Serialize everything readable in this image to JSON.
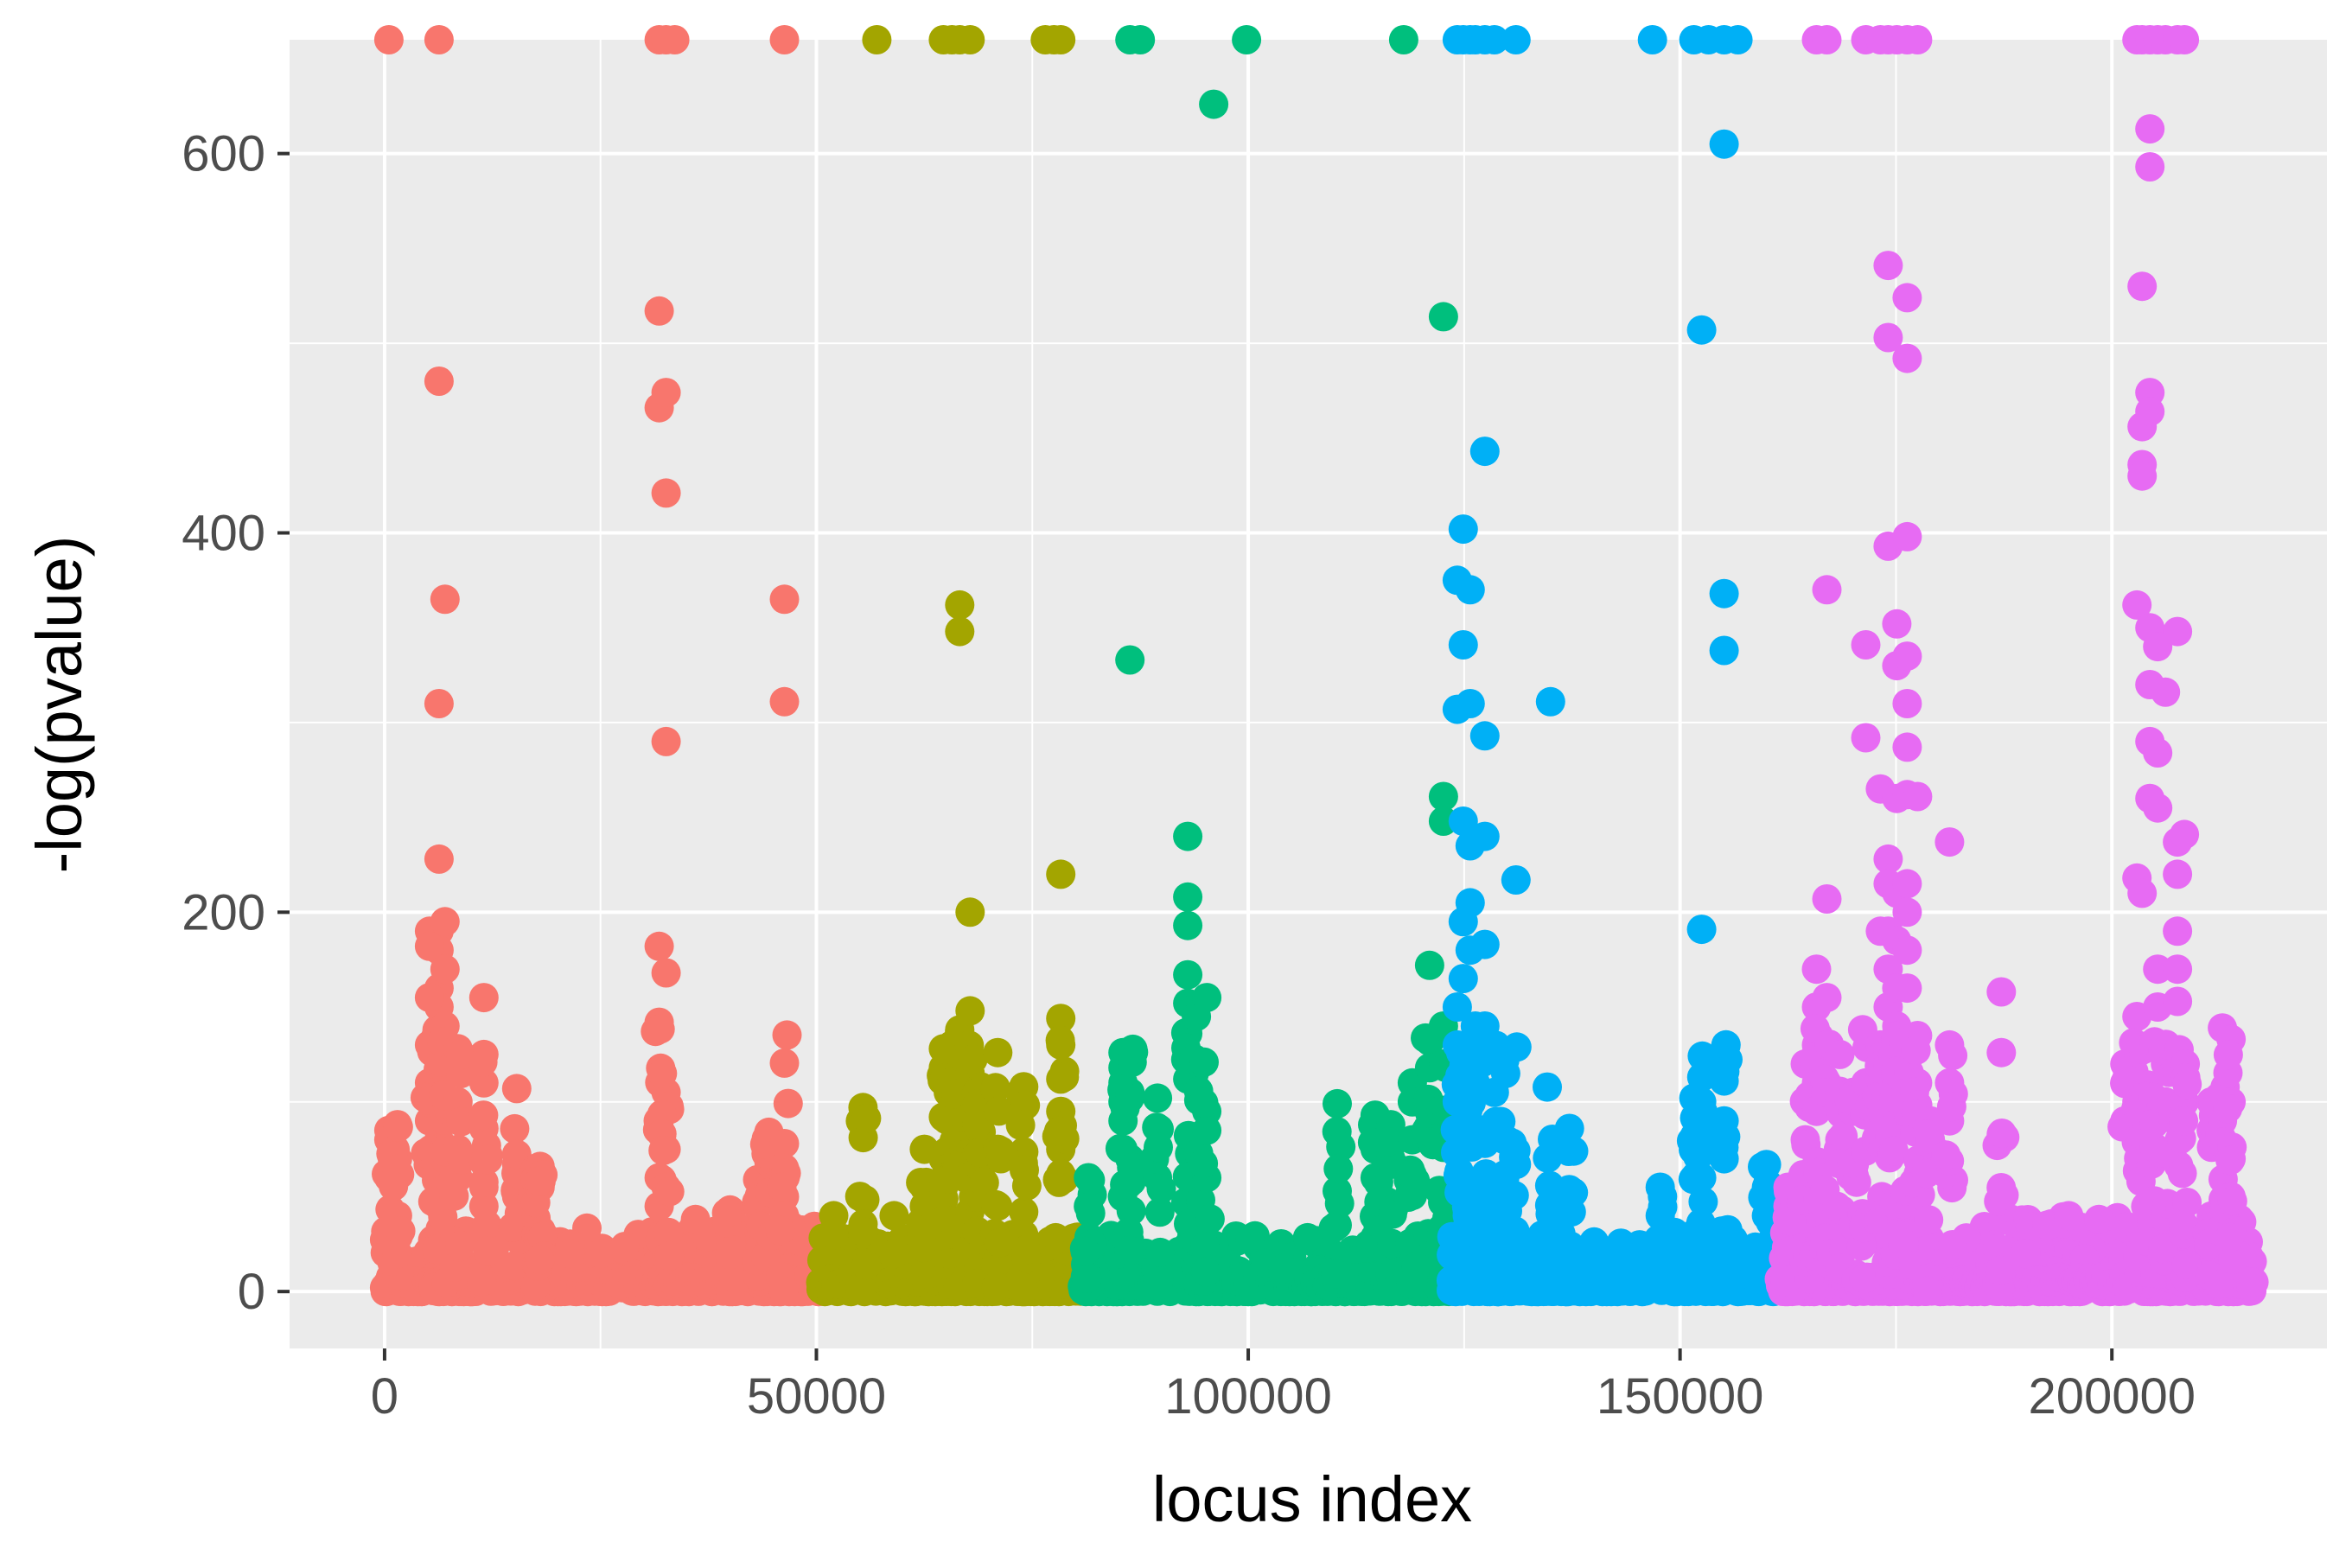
{
  "chart_data": {
    "type": "scatter",
    "title": "",
    "xlabel": "locus index",
    "ylabel": "-log(pvalue)",
    "xlim": [
      -11000,
      225000
    ],
    "ylim": [
      -30,
      660
    ],
    "x_ticks": [
      0,
      50000,
      100000,
      150000,
      200000
    ],
    "x_tick_labels": [
      "0",
      "50000",
      "100000",
      "150000",
      "200000"
    ],
    "y_ticks": [
      0,
      200,
      400,
      600
    ],
    "y_tick_labels": [
      "0",
      "200",
      "400",
      "600"
    ],
    "grid": true,
    "legend": "none",
    "background_color": "#ebebeb",
    "grid_color": "#ffffff",
    "groups": [
      {
        "color": "#F8766D",
        "x_range": [
          0,
          50500
        ],
        "baseline_max": 35,
        "peaks": [
          {
            "x": 500,
            "values": [
              660,
              85,
              80,
              60
            ]
          },
          {
            "x": 1500,
            "values": [
              88,
              70,
              40
            ]
          },
          {
            "x": 6300,
            "values": [
              660,
              480,
              310,
              228,
              190,
              180,
              160,
              150,
              135,
              120,
              110,
              95,
              80,
              70,
              60,
              45
            ]
          },
          {
            "x": 5200,
            "values": [
              190,
              182,
              155,
              130,
              110,
              90
            ]
          },
          {
            "x": 7000,
            "values": [
              365,
              195,
              170,
              140,
              115,
              90,
              70
            ]
          },
          {
            "x": 8500,
            "values": [
              128,
              100,
              75,
              60
            ]
          },
          {
            "x": 11500,
            "values": [
              155,
              125,
              110,
              86,
              68,
              55,
              45
            ]
          },
          {
            "x": 15300,
            "values": [
              107,
              67,
              50
            ]
          },
          {
            "x": 17500,
            "values": [
              65,
              55,
              30
            ]
          },
          {
            "x": 18000,
            "values": [
              66,
              55
            ]
          },
          {
            "x": 21500,
            "values": [
              25,
              20
            ]
          },
          {
            "x": 25000,
            "values": [
              20
            ]
          },
          {
            "x": 31800,
            "values": [
              660,
              517,
              466,
              182,
              142,
              90,
              60,
              45
            ]
          },
          {
            "x": 32600,
            "values": [
              660,
              474,
              421,
              290,
              168,
              105,
              75,
              55
            ]
          },
          {
            "x": 33600,
            "values": [
              660
            ]
          },
          {
            "x": 36000,
            "values": [
              38
            ]
          },
          {
            "x": 40000,
            "values": [
              43,
              30
            ]
          },
          {
            "x": 43200,
            "values": [
              59,
              45
            ]
          },
          {
            "x": 44500,
            "values": [
              84,
              55
            ]
          },
          {
            "x": 46300,
            "values": [
              660,
              365,
              311,
              78,
              65,
              50,
              40
            ]
          }
        ]
      },
      {
        "color": "#A3A500",
        "x_range": [
          50500,
          80800
        ],
        "baseline_max": 30,
        "peaks": [
          {
            "x": 52000,
            "values": [
              40,
              30
            ]
          },
          {
            "x": 55400,
            "values": [
              97,
              30
            ]
          },
          {
            "x": 57000,
            "values": [
              660
            ]
          },
          {
            "x": 59000,
            "values": [
              40,
              20
            ]
          },
          {
            "x": 62500,
            "values": [
              75,
              55,
              45
            ]
          },
          {
            "x": 64700,
            "values": [
              660,
              128,
              118,
              92,
              70,
              55,
              40
            ]
          },
          {
            "x": 65700,
            "values": [
              660,
              130
            ]
          },
          {
            "x": 66600,
            "values": [
              660,
              362,
              348,
              138,
              125,
              100,
              80
            ]
          },
          {
            "x": 67800,
            "values": [
              660,
              200,
              148,
              115,
              90,
              60
            ]
          },
          {
            "x": 69000,
            "values": [
              108,
              92,
              80,
              65,
              50
            ]
          },
          {
            "x": 71000,
            "values": [
              126,
              75,
              45
            ]
          },
          {
            "x": 74000,
            "values": [
              108,
              42,
              30
            ]
          },
          {
            "x": 76500,
            "values": [
              660
            ]
          },
          {
            "x": 77500,
            "values": [
              660
            ]
          },
          {
            "x": 78300,
            "values": [
              660,
              220,
              144,
              130,
              112,
              95,
              85,
              75,
              62
            ]
          }
        ]
      },
      {
        "color": "#00BF7D",
        "x_range": [
          80800,
          123500
        ],
        "baseline_max": 30,
        "peaks": [
          {
            "x": 81500,
            "values": [
              60,
              45
            ]
          },
          {
            "x": 85500,
            "values": [
              126,
              118,
              110,
              100,
              90,
              75
            ]
          },
          {
            "x": 86300,
            "values": [
              660,
              333,
              105,
              70
            ]
          },
          {
            "x": 87500,
            "values": [
              660
            ]
          },
          {
            "x": 89500,
            "values": [
              102,
              60
            ]
          },
          {
            "x": 93000,
            "values": [
              240,
              208,
              193,
              167,
              152,
              136,
              122,
              112
            ]
          },
          {
            "x": 94000,
            "values": [
              150,
              145
            ]
          },
          {
            "x": 95200,
            "values": [
              155,
              95,
              85,
              60
            ]
          },
          {
            "x": 96000,
            "values": [
              626
            ]
          },
          {
            "x": 99800,
            "values": [
              660
            ]
          },
          {
            "x": 102000,
            "values": [
              15
            ]
          },
          {
            "x": 104000,
            "values": [
              12
            ]
          },
          {
            "x": 110300,
            "values": [
              99,
              53,
              35
            ]
          },
          {
            "x": 114700,
            "values": [
              93,
              75,
              60
            ]
          },
          {
            "x": 116500,
            "values": [
              88,
              70
            ]
          },
          {
            "x": 118000,
            "values": [
              660
            ]
          },
          {
            "x": 119000,
            "values": [
              110,
              100,
              80
            ]
          },
          {
            "x": 121000,
            "values": [
              172,
              132,
              118
            ]
          },
          {
            "x": 122600,
            "values": [
              514,
              261,
              248,
              140,
              120
            ]
          }
        ]
      },
      {
        "color": "#00B0F6",
        "x_range": [
          123500,
          161500
        ],
        "baseline_max": 32,
        "peaks": [
          {
            "x": 124200,
            "values": [
              660,
              375,
              307,
              150,
              130,
              100
            ]
          },
          {
            "x": 124900,
            "values": [
              660,
              402,
              341,
              248,
              195,
              165
            ]
          },
          {
            "x": 125700,
            "values": [
              660,
              370,
              310,
              235,
              205,
              180
            ]
          },
          {
            "x": 126300,
            "values": [
              660,
              140,
              110
            ]
          },
          {
            "x": 127400,
            "values": [
              660,
              443,
              293,
              240,
              183,
              140
            ]
          },
          {
            "x": 128500,
            "values": [
              660,
              130,
              105
            ]
          },
          {
            "x": 129700,
            "values": [
              122,
              80,
              60
            ]
          },
          {
            "x": 131000,
            "values": [
              660,
              217
            ]
          },
          {
            "x": 135000,
            "values": [
              311
            ]
          },
          {
            "x": 137200,
            "values": [
              86,
              75,
              50
            ]
          },
          {
            "x": 143000,
            "values": [
              20
            ]
          },
          {
            "x": 146800,
            "values": [
              660
            ]
          },
          {
            "x": 147700,
            "values": [
              55,
              40
            ]
          },
          {
            "x": 150000,
            "values": [
              20
            ]
          },
          {
            "x": 151600,
            "values": [
              660,
              102
            ]
          },
          {
            "x": 152500,
            "values": [
              507,
              191,
              100,
              80,
              60
            ]
          },
          {
            "x": 153300,
            "values": [
              660
            ]
          },
          {
            "x": 155100,
            "values": [
              660,
              605,
              368,
              338,
              111,
              90,
              70
            ]
          },
          {
            "x": 156700,
            "values": [
              660
            ]
          },
          {
            "x": 160000,
            "values": [
              67,
              55,
              40
            ]
          }
        ]
      },
      {
        "color": "#E76BF3",
        "x_range": [
          161500,
          216500
        ],
        "baseline_max": 40,
        "peaks": [
          {
            "x": 162500,
            "values": [
              55,
              45
            ]
          },
          {
            "x": 164500,
            "values": [
              120,
              100,
              80
            ]
          },
          {
            "x": 165800,
            "values": [
              660,
              170,
              150,
              130,
              110,
              95
            ]
          },
          {
            "x": 167000,
            "values": [
              660,
              370,
              207,
              155,
              130,
              110
            ]
          },
          {
            "x": 168500,
            "values": [
              125,
              100,
              80
            ]
          },
          {
            "x": 170000,
            "values": [
              105,
              95
            ]
          },
          {
            "x": 171500,
            "values": [
              660,
              341,
              292,
              110
            ]
          },
          {
            "x": 173200,
            "values": [
              660,
              265,
              190,
              130,
              100
            ]
          },
          {
            "x": 174100,
            "values": [
              660,
              541,
              503,
              393,
              228,
              215,
              190,
              170,
              150,
              120
            ]
          },
          {
            "x": 175100,
            "values": [
              660,
              352,
              330,
              260,
              210,
              185,
              160,
              140,
              110
            ]
          },
          {
            "x": 176300,
            "values": [
              660,
              524,
              492,
              398,
              335,
              310,
              287,
              262,
              215,
              200,
              180,
              160
            ]
          },
          {
            "x": 177500,
            "values": [
              660,
              261,
              135,
              110
            ]
          },
          {
            "x": 179000,
            "values": [
              90,
              70
            ]
          },
          {
            "x": 181200,
            "values": [
              237,
              130,
              110,
              90
            ]
          },
          {
            "x": 187200,
            "values": [
              158,
              126,
              83,
              50
            ]
          },
          {
            "x": 190000,
            "values": [
              20
            ]
          },
          {
            "x": 192500,
            "values": [
              35
            ]
          },
          {
            "x": 195000,
            "values": [
              40
            ]
          },
          {
            "x": 198500,
            "values": [
              38
            ]
          },
          {
            "x": 201500,
            "values": [
              120,
              110,
              90
            ]
          },
          {
            "x": 202900,
            "values": [
              660,
              362,
              218,
              145,
              100,
              80
            ]
          },
          {
            "x": 203500,
            "values": [
              660,
              530,
              456,
              436,
              430,
              210
            ]
          },
          {
            "x": 204400,
            "values": [
              660,
              613,
              593,
              474,
              464,
              350,
              320,
              290,
              260
            ]
          },
          {
            "x": 205300,
            "values": [
              660,
              340,
              284,
              255,
              170,
              150
            ]
          },
          {
            "x": 206200,
            "values": [
              660,
              316,
              120,
              100
            ]
          },
          {
            "x": 207600,
            "values": [
              660,
              348,
              237,
              220,
              190,
              170,
              153
            ]
          },
          {
            "x": 208400,
            "values": [
              660,
              241,
              100
            ]
          },
          {
            "x": 211500,
            "values": [
              100,
              85
            ]
          },
          {
            "x": 212800,
            "values": [
              139,
              104,
              90,
              80
            ]
          },
          {
            "x": 213800,
            "values": [
              133,
              100,
              70,
              50
            ]
          }
        ]
      }
    ]
  }
}
